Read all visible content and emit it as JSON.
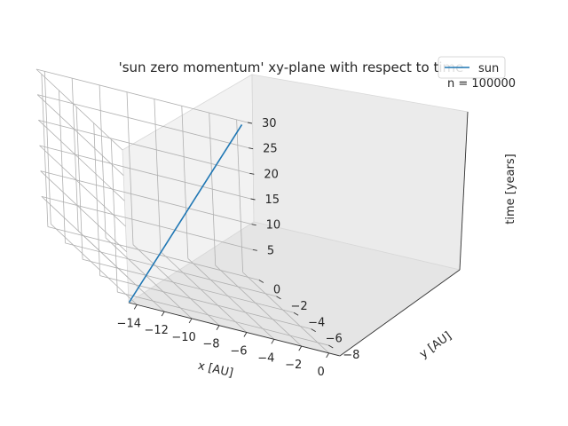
{
  "chart_data": {
    "type": "line",
    "projection": "3d",
    "title": "'sun zero momentum' xy-plane with respect to time",
    "annotation": "n = 100000",
    "xlabel": "x [AU]",
    "ylabel": "y [AU]",
    "zlabel": "time [years]",
    "xlim": [
      -14.6,
      0.8
    ],
    "ylim": [
      -9.3,
      0.6
    ],
    "zlim": [
      0,
      30
    ],
    "xticks": [
      -14,
      -12,
      -10,
      -8,
      -6,
      -4,
      -2,
      0
    ],
    "yticks": [
      -8,
      -6,
      -4,
      -2,
      0
    ],
    "zticks": [
      5,
      10,
      15,
      20,
      25,
      30
    ],
    "grid": true,
    "legend_position": "top-right",
    "series": [
      {
        "name": "sun",
        "color": "#1f77b4",
        "x": [
          -14.5,
          0.0
        ],
        "y": [
          -9.2,
          0.0
        ],
        "z": [
          0,
          30
        ]
      }
    ]
  }
}
